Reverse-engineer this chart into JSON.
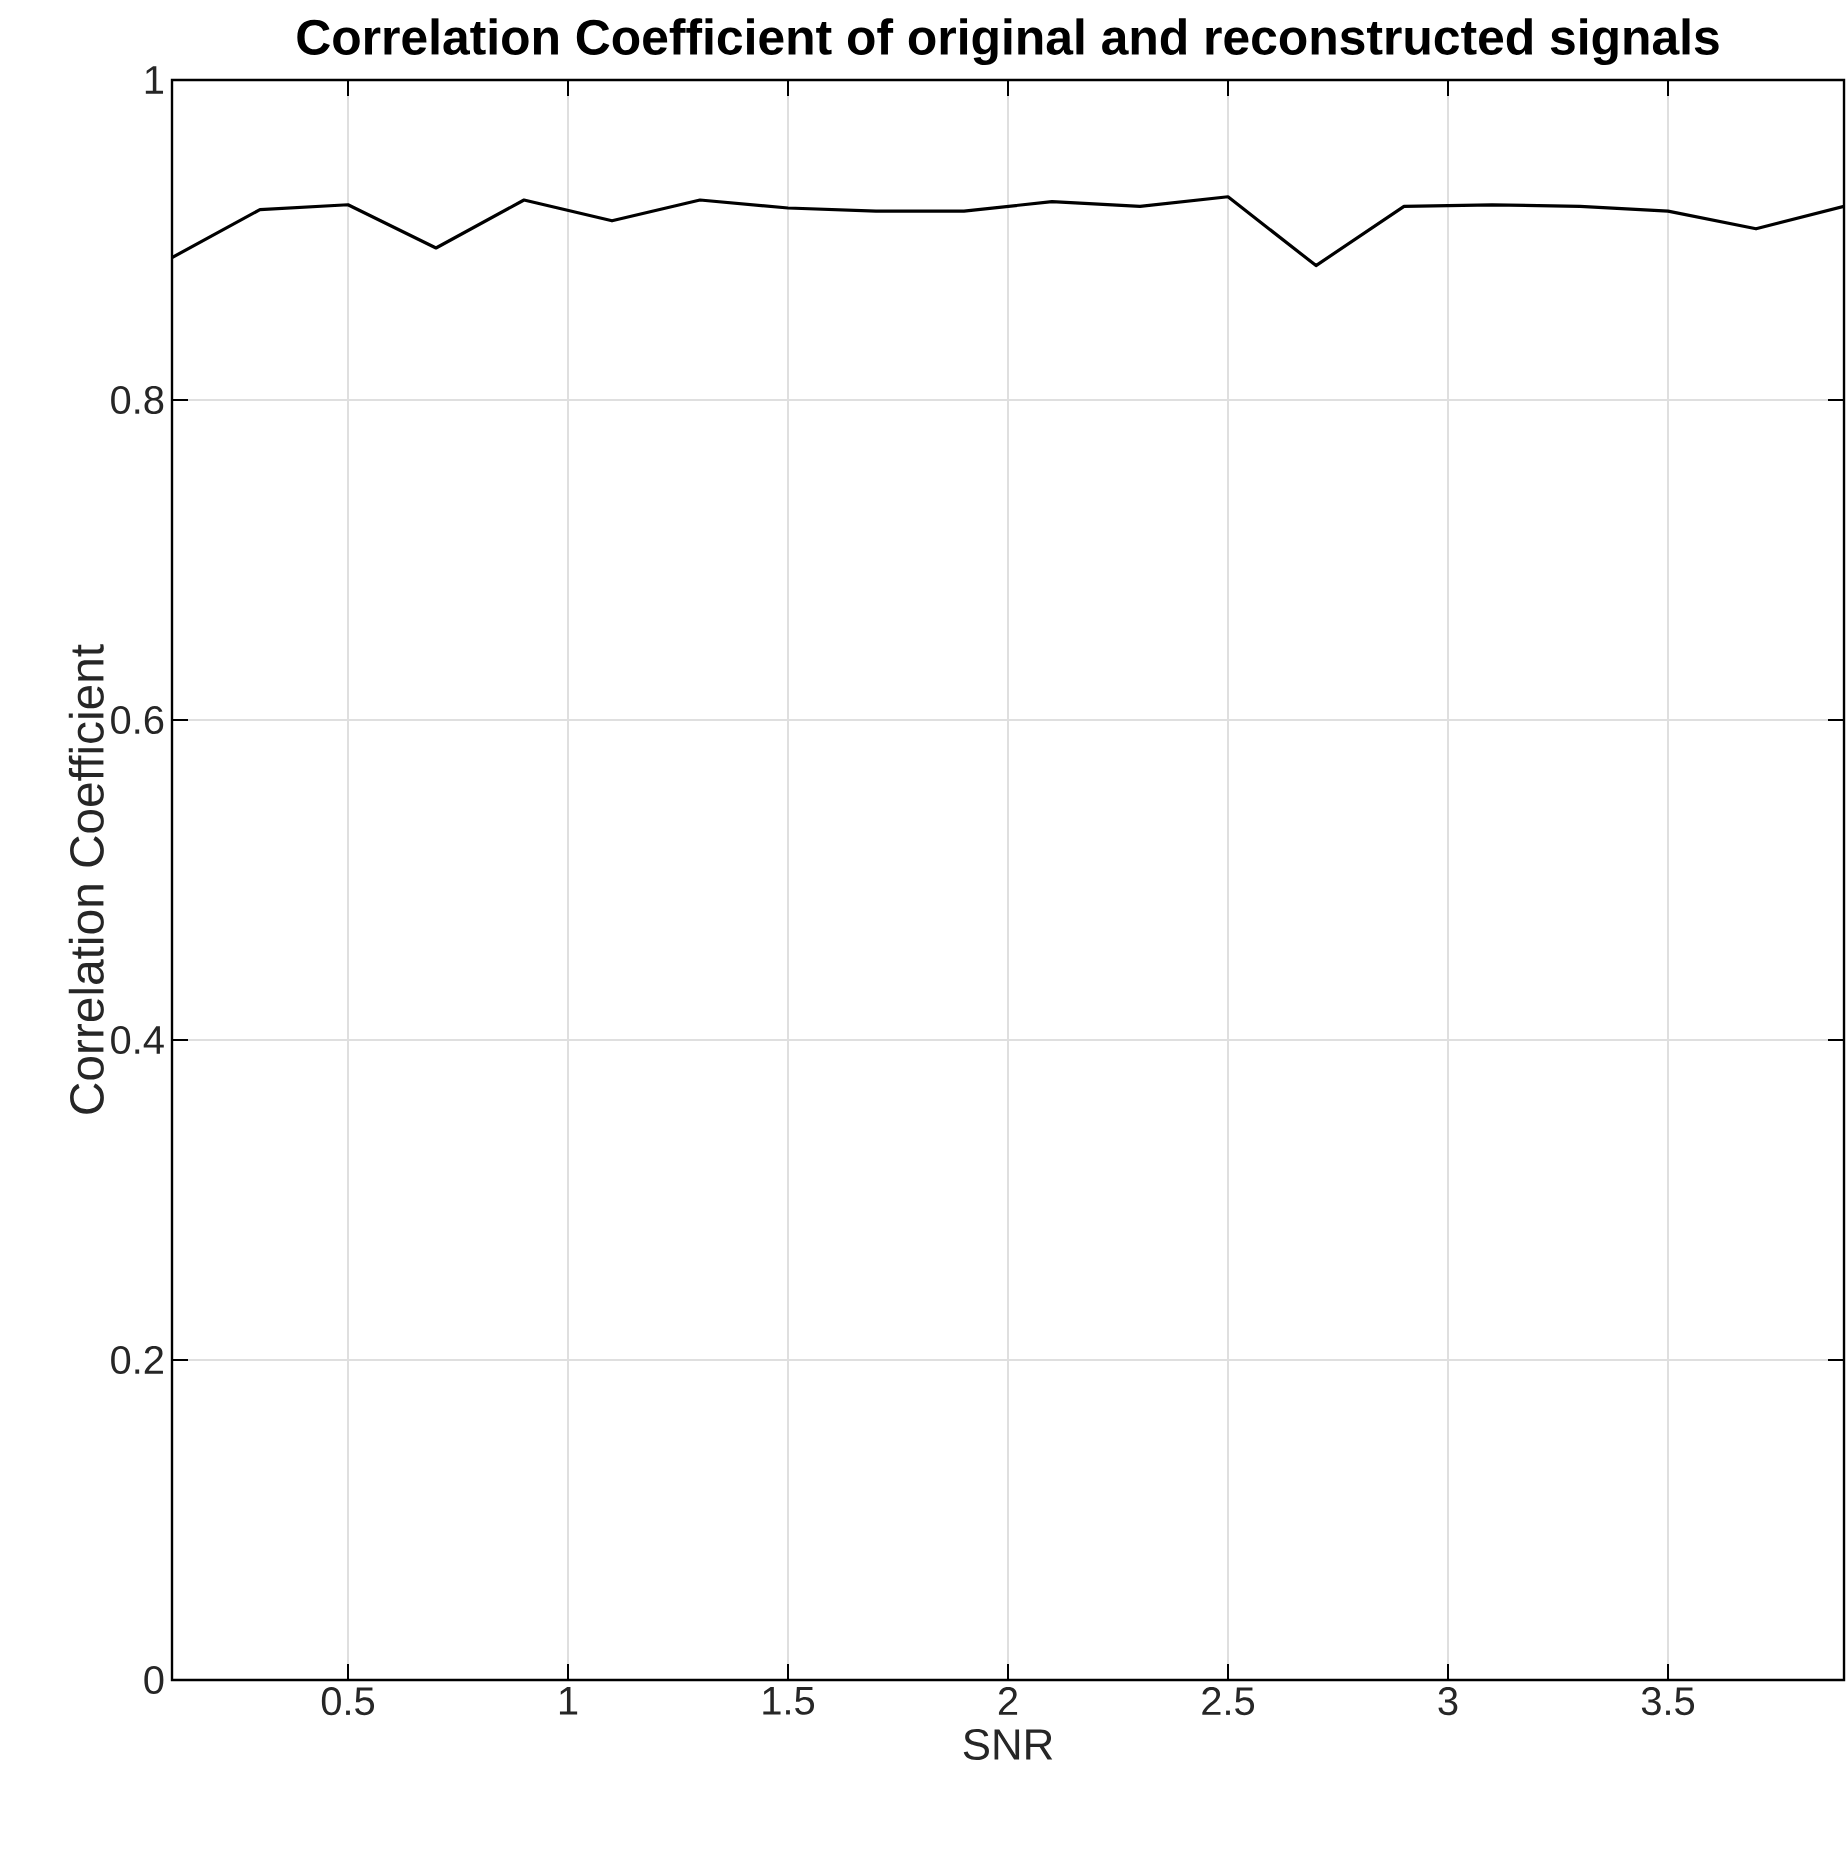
{
  "chart_data": {
    "type": "line",
    "title": "Correlation Coefficient of original and reconstructed signals",
    "xlabel": "SNR",
    "ylabel": "Correlation Coefficient",
    "x": [
      0.1,
      0.3,
      0.5,
      0.7,
      0.9,
      1.1,
      1.3,
      1.5,
      1.7,
      1.9,
      2.1,
      2.3,
      2.5,
      2.7,
      2.9,
      3.1,
      3.3,
      3.5,
      3.7,
      3.9
    ],
    "series": [
      {
        "color": "#000000",
        "values": [
          0.889,
          0.919,
          0.922,
          0.895,
          0.925,
          0.912,
          0.925,
          0.92,
          0.918,
          0.918,
          0.924,
          0.921,
          0.927,
          0.884,
          0.921,
          0.922,
          0.921,
          0.918,
          0.907,
          0.921
        ]
      }
    ],
    "xlim": [
      0.1,
      3.9
    ],
    "ylim": [
      0,
      1
    ],
    "xticks": [
      0.5,
      1,
      1.5,
      2,
      2.5,
      3,
      3.5
    ],
    "yticks": [
      0,
      0.2,
      0.4,
      0.6,
      0.8,
      1
    ],
    "grid": true,
    "marker": "none",
    "line_style": "solid"
  }
}
